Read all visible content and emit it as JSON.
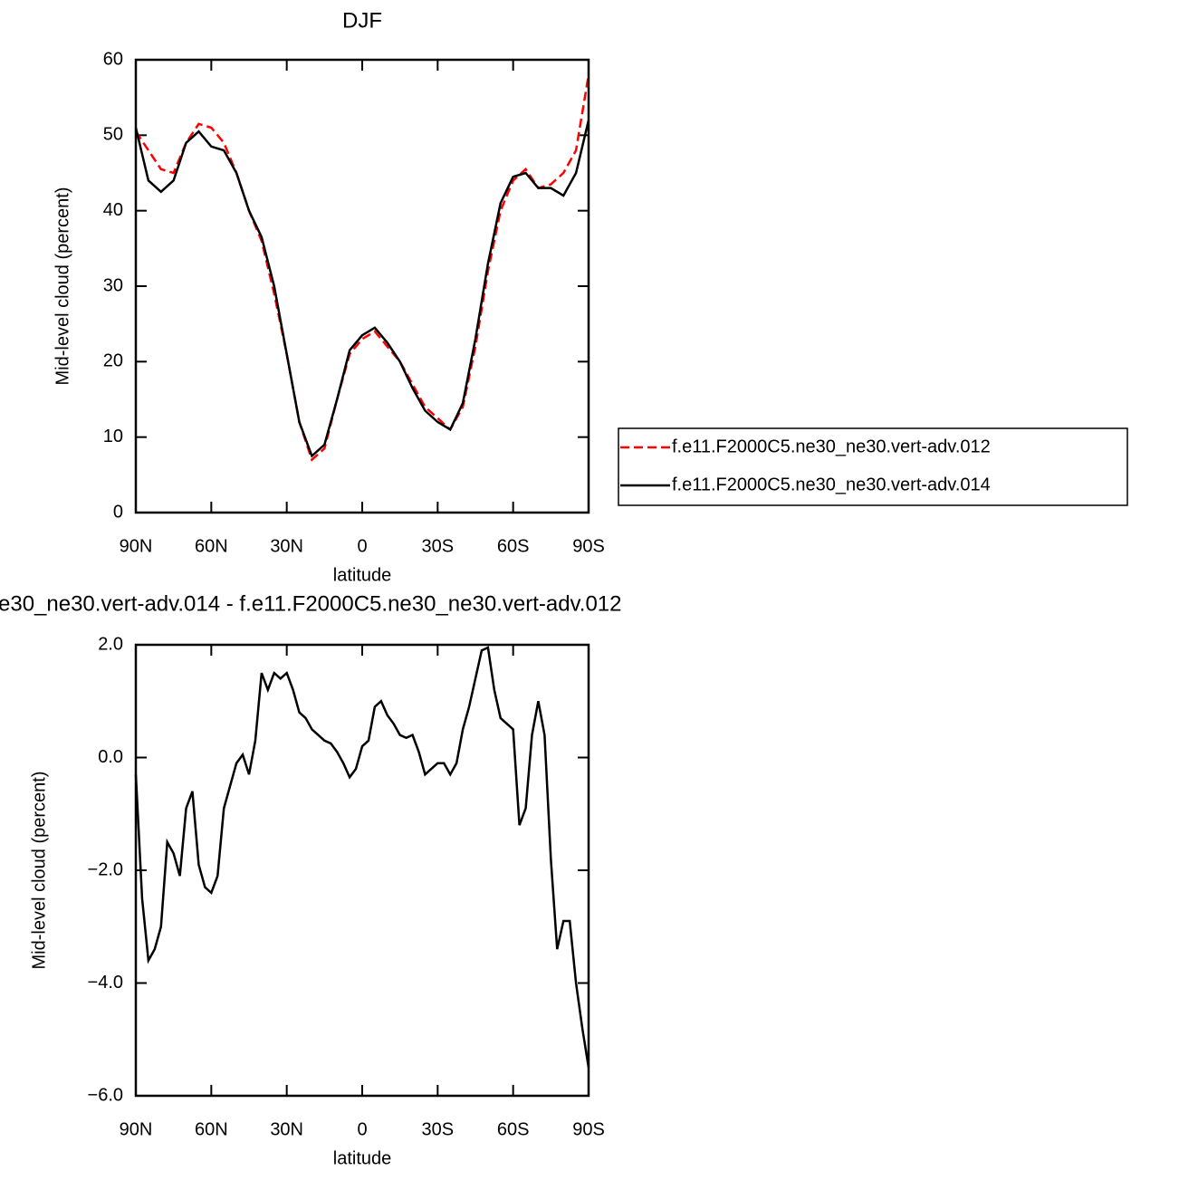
{
  "chart_data": [
    {
      "type": "line",
      "title": "DJF",
      "xlabel": "latitude",
      "ylabel": "Mid-level cloud (percent)",
      "x": [
        90,
        85,
        80,
        75,
        70,
        65,
        60,
        55,
        50,
        45,
        40,
        35,
        30,
        25,
        20,
        15,
        10,
        5,
        0,
        -5,
        -10,
        -15,
        -20,
        -25,
        -30,
        -35,
        -40,
        -45,
        -50,
        -55,
        -60,
        -65,
        -70,
        -75,
        -80,
        -85,
        -90
      ],
      "series": [
        {
          "name": "f.e11.F2000C5.ne30_ne30.vert-adv.012",
          "color": "#ff0000",
          "line_style": "dashed",
          "values": [
            50.5,
            48,
            45.5,
            45,
            49,
            51.5,
            51,
            49,
            45,
            40,
            36,
            29,
            21,
            12,
            7,
            8.5,
            15,
            21,
            23,
            24,
            22,
            20,
            17,
            14,
            12.5,
            11,
            14,
            22,
            32,
            40,
            44,
            45.5,
            43,
            43.5,
            45,
            48,
            58
          ]
        },
        {
          "name": "f.e11.F2000C5.ne30_ne30.vert-adv.014",
          "color": "#000000",
          "line_style": "solid",
          "values": [
            51,
            44,
            42.5,
            44,
            49,
            50.5,
            48.5,
            48,
            45,
            40,
            36.5,
            30,
            21,
            12,
            7.5,
            9,
            15,
            21.5,
            23.5,
            24.5,
            22.5,
            20,
            16.5,
            13.5,
            12,
            11,
            14.5,
            23,
            33,
            41,
            44.5,
            45,
            43,
            43,
            42,
            45,
            52
          ]
        }
      ],
      "xlim": [
        90,
        -90
      ],
      "xticks": [
        {
          "value": 90,
          "label": "90N"
        },
        {
          "value": 60,
          "label": "60N"
        },
        {
          "value": 30,
          "label": "30N"
        },
        0,
        {
          "value": -30,
          "label": "30S"
        },
        {
          "value": -60,
          "label": "60S"
        },
        {
          "value": -90,
          "label": "90S"
        }
      ],
      "ylim": [
        0,
        60
      ],
      "yticks": [
        0,
        10,
        20,
        30,
        40,
        50,
        60
      ],
      "legend": "right"
    },
    {
      "type": "line",
      "title": "e30_ne30.vert-adv.014 - f.e11.F2000C5.ne30_ne30.vert-adv.012",
      "xlabel": "latitude",
      "ylabel": "Mid-level cloud (percent)",
      "x": [
        90,
        87.5,
        85,
        82.5,
        80,
        77.5,
        75,
        72.5,
        70,
        67.5,
        65,
        62.5,
        60,
        57.5,
        55,
        52.5,
        50,
        47.5,
        45,
        42.5,
        40,
        37.5,
        35,
        32.5,
        30,
        27.5,
        25,
        22.5,
        20,
        17.5,
        15,
        12.5,
        10,
        7.5,
        5,
        2.5,
        0,
        -2.5,
        -5,
        -7.5,
        -10,
        -12.5,
        -15,
        -17.5,
        -20,
        -22.5,
        -25,
        -27.5,
        -30,
        -32.5,
        -35,
        -37.5,
        -40,
        -42.5,
        -45,
        -47.5,
        -50,
        -52.5,
        -55,
        -57.5,
        -60,
        -62.5,
        -65,
        -67.5,
        -70,
        -72.5,
        -75,
        -77.5,
        -80,
        -82.5,
        -85,
        -87.5,
        -90
      ],
      "series": [
        {
          "color": "#000000",
          "line_style": "solid",
          "values": [
            -0.3,
            -2.5,
            -3.6,
            -3.4,
            -3.0,
            -1.5,
            -1.7,
            -2.1,
            -0.9,
            -0.6,
            -1.9,
            -2.3,
            -2.4,
            -2.1,
            -0.9,
            -0.5,
            -0.1,
            0.05,
            -0.3,
            0.3,
            1.5,
            1.2,
            1.5,
            1.4,
            1.5,
            1.2,
            0.8,
            0.7,
            0.5,
            0.4,
            0.3,
            0.25,
            0.1,
            -0.1,
            -0.35,
            -0.2,
            0.2,
            0.3,
            0.9,
            1.0,
            0.75,
            0.6,
            0.4,
            0.35,
            0.4,
            0.1,
            -0.3,
            -0.2,
            -0.1,
            -0.1,
            -0.3,
            -0.1,
            0.5,
            0.9,
            1.4,
            1.9,
            1.95,
            1.2,
            0.7,
            0.6,
            0.5,
            -1.2,
            -0.9,
            0.4,
            1.0,
            0.4,
            -1.8,
            -3.4,
            -2.9,
            -2.9,
            -4.0,
            -4.8,
            -5.5
          ]
        }
      ],
      "xlim": [
        90,
        -90
      ],
      "xticks": [
        {
          "value": 90,
          "label": "90N"
        },
        {
          "value": 60,
          "label": "60N"
        },
        {
          "value": 30,
          "label": "30N"
        },
        0,
        {
          "value": -30,
          "label": "30S"
        },
        {
          "value": -60,
          "label": "60S"
        },
        {
          "value": -90,
          "label": "90S"
        }
      ],
      "ylim": [
        -6,
        2
      ],
      "yticks": [
        {
          "value": -6,
          "label": "−6.0"
        },
        {
          "value": -4,
          "label": "−4.0"
        },
        {
          "value": -2,
          "label": "−2.0"
        },
        {
          "value": 0,
          "label": "0.0"
        },
        {
          "value": 2,
          "label": "2.0"
        }
      ]
    }
  ]
}
